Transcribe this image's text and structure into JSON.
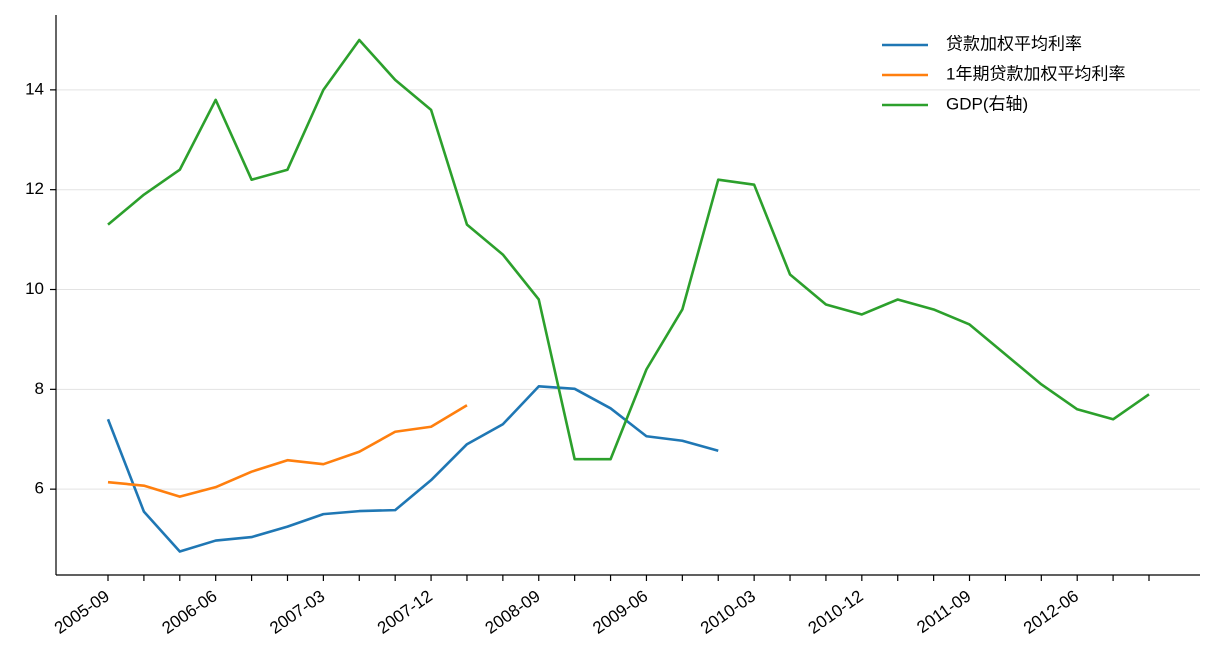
{
  "chart_data": {
    "type": "line",
    "categories": [
      "2005-09",
      null,
      null,
      "2006-06",
      null,
      null,
      "2007-03",
      null,
      null,
      "2007-12",
      null,
      null,
      "2008-09",
      null,
      null,
      "2009-06",
      null,
      null,
      "2010-03",
      null,
      null,
      "2010-12",
      null,
      null,
      "2011-09",
      null,
      null,
      "2012-06",
      null,
      null
    ],
    "series": [
      {
        "name": "贷款加权平均利率",
        "color": "#1f77b4",
        "values": [
          7.4,
          5.55,
          4.75,
          4.97,
          5.04,
          5.25,
          5.5,
          5.56,
          5.58,
          6.18,
          6.9,
          7.3,
          8.06,
          8.01,
          7.62,
          7.06,
          6.97,
          6.77,
          null,
          null,
          null,
          null,
          null,
          null,
          null,
          null,
          null,
          null,
          null,
          null
        ]
      },
      {
        "name": "1年期贷款加权平均利率",
        "color": "#ff7f0e",
        "values": [
          6.14,
          6.07,
          5.85,
          6.04,
          6.35,
          6.58,
          6.5,
          6.75,
          7.15,
          7.25,
          7.68,
          null,
          null,
          null,
          null,
          null,
          null,
          null,
          null,
          null,
          null,
          null,
          null,
          null,
          null,
          null,
          null,
          null,
          null,
          null
        ]
      },
      {
        "name": "GDP(右轴)",
        "color": "#2ca02c",
        "values": [
          11.3,
          11.9,
          12.4,
          13.8,
          12.2,
          12.4,
          14.0,
          15.0,
          14.2,
          13.6,
          11.3,
          10.7,
          9.8,
          6.6,
          6.6,
          8.4,
          9.6,
          12.2,
          12.1,
          10.3,
          9.7,
          9.5,
          9.8,
          9.6,
          9.3,
          8.7,
          8.1,
          7.6,
          7.4,
          7.9
        ]
      }
    ],
    "ylim": [
      4.28,
      15.5
    ],
    "yticks": [
      6,
      8,
      10,
      12,
      14
    ],
    "grid": true,
    "legend": "upper right"
  }
}
